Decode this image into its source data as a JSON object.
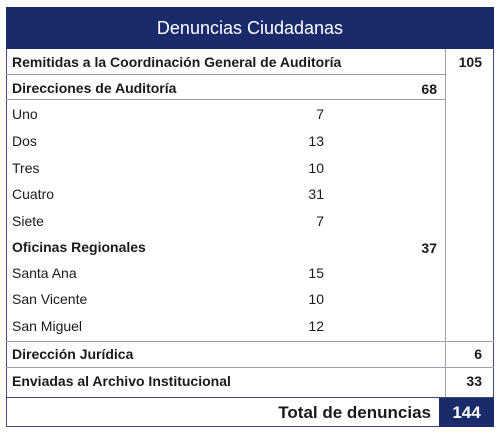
{
  "title": "Denuncias Ciudadanas",
  "remitidas": {
    "label": "Remitidas a la Coordinación General de Auditoría",
    "value": "105"
  },
  "direcciones": {
    "label": "Direcciones de Auditoría",
    "value": "68",
    "items": [
      {
        "label": "Uno",
        "value": "7"
      },
      {
        "label": "Dos",
        "value": "13"
      },
      {
        "label": "Tres",
        "value": "10"
      },
      {
        "label": "Cuatro",
        "value": "31"
      },
      {
        "label": "Siete",
        "value": "7"
      }
    ]
  },
  "oficinas": {
    "label": "Oficinas Regionales",
    "value": "37",
    "items": [
      {
        "label": "Santa Ana",
        "value": "15"
      },
      {
        "label": "San Vicente",
        "value": "10"
      },
      {
        "label": "San Miguel",
        "value": "12"
      }
    ]
  },
  "juridica": {
    "label": "Dirección Jurídica",
    "value": "6"
  },
  "archivo": {
    "label": "Enviadas al Archivo Institucional",
    "value": "33"
  },
  "total": {
    "label": "Total de denuncias",
    "value": "144"
  }
}
